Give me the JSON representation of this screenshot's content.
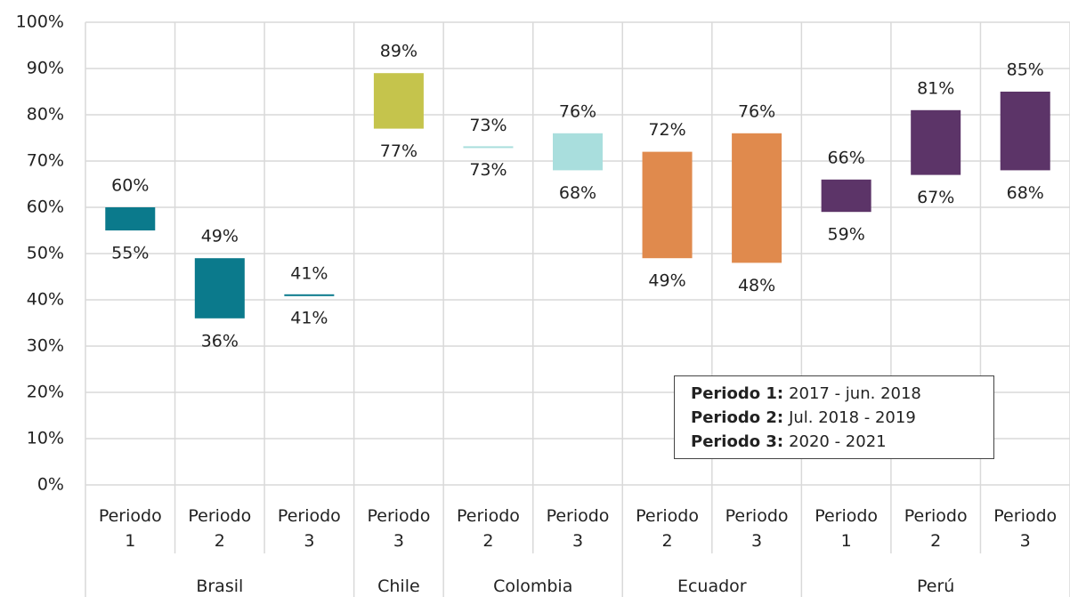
{
  "chart_data": {
    "type": "range",
    "ylim": [
      0,
      100
    ],
    "yticks": [
      {
        "value": 0,
        "label": "0%"
      },
      {
        "value": 10,
        "label": "10%"
      },
      {
        "value": 20,
        "label": "20%"
      },
      {
        "value": 30,
        "label": "30%"
      },
      {
        "value": 40,
        "label": "40%"
      },
      {
        "value": 50,
        "label": "50%"
      },
      {
        "value": 60,
        "label": "60%"
      },
      {
        "value": 70,
        "label": "70%"
      },
      {
        "value": 80,
        "label": "80%"
      },
      {
        "value": 90,
        "label": "90%"
      },
      {
        "value": 100,
        "label": "100%"
      }
    ],
    "grid": true,
    "series": [
      {
        "name": "Brasil",
        "color": "#0b7a8c",
        "categories": [
          "Periodo 1",
          "Periodo 2",
          "Periodo 3"
        ],
        "low": [
          55,
          36,
          41
        ],
        "high": [
          60,
          49,
          41
        ],
        "low_labels": [
          "55%",
          "36%",
          "41%"
        ],
        "high_labels": [
          "60%",
          "49%",
          "41%"
        ]
      },
      {
        "name": "Chile",
        "color": "#c5c44c",
        "categories": [
          "Periodo 3"
        ],
        "low": [
          77
        ],
        "high": [
          89
        ],
        "low_labels": [
          "77%"
        ],
        "high_labels": [
          "89%"
        ]
      },
      {
        "name": "Colombia",
        "color": "#a9dedd",
        "categories": [
          "Periodo 2",
          "Periodo 3"
        ],
        "low": [
          73,
          68
        ],
        "high": [
          73,
          76
        ],
        "low_labels": [
          "73%",
          "68%"
        ],
        "high_labels": [
          "73%",
          "76%"
        ]
      },
      {
        "name": "Ecuador",
        "color": "#e08a4d",
        "categories": [
          "Periodo 2",
          "Periodo 3"
        ],
        "low": [
          49,
          48
        ],
        "high": [
          72,
          76
        ],
        "low_labels": [
          "49%",
          "48%"
        ],
        "high_labels": [
          "72%",
          "76%"
        ]
      },
      {
        "name": "Perú",
        "color": "#5c3468",
        "categories": [
          "Periodo 1",
          "Periodo 2",
          "Periodo 3"
        ],
        "low": [
          59,
          67,
          68
        ],
        "high": [
          66,
          81,
          85
        ],
        "low_labels": [
          "59%",
          "67%",
          "68%"
        ],
        "high_labels": [
          "66%",
          "81%",
          "85%"
        ]
      }
    ],
    "notes": [
      {
        "label": "Periodo 1:",
        "text": "2017 - jun. 2018"
      },
      {
        "label": "Periodo 2:",
        "text": "Jul. 2018 - 2019"
      },
      {
        "label": "Periodo 3:",
        "text": "2020 - 2021"
      }
    ]
  }
}
